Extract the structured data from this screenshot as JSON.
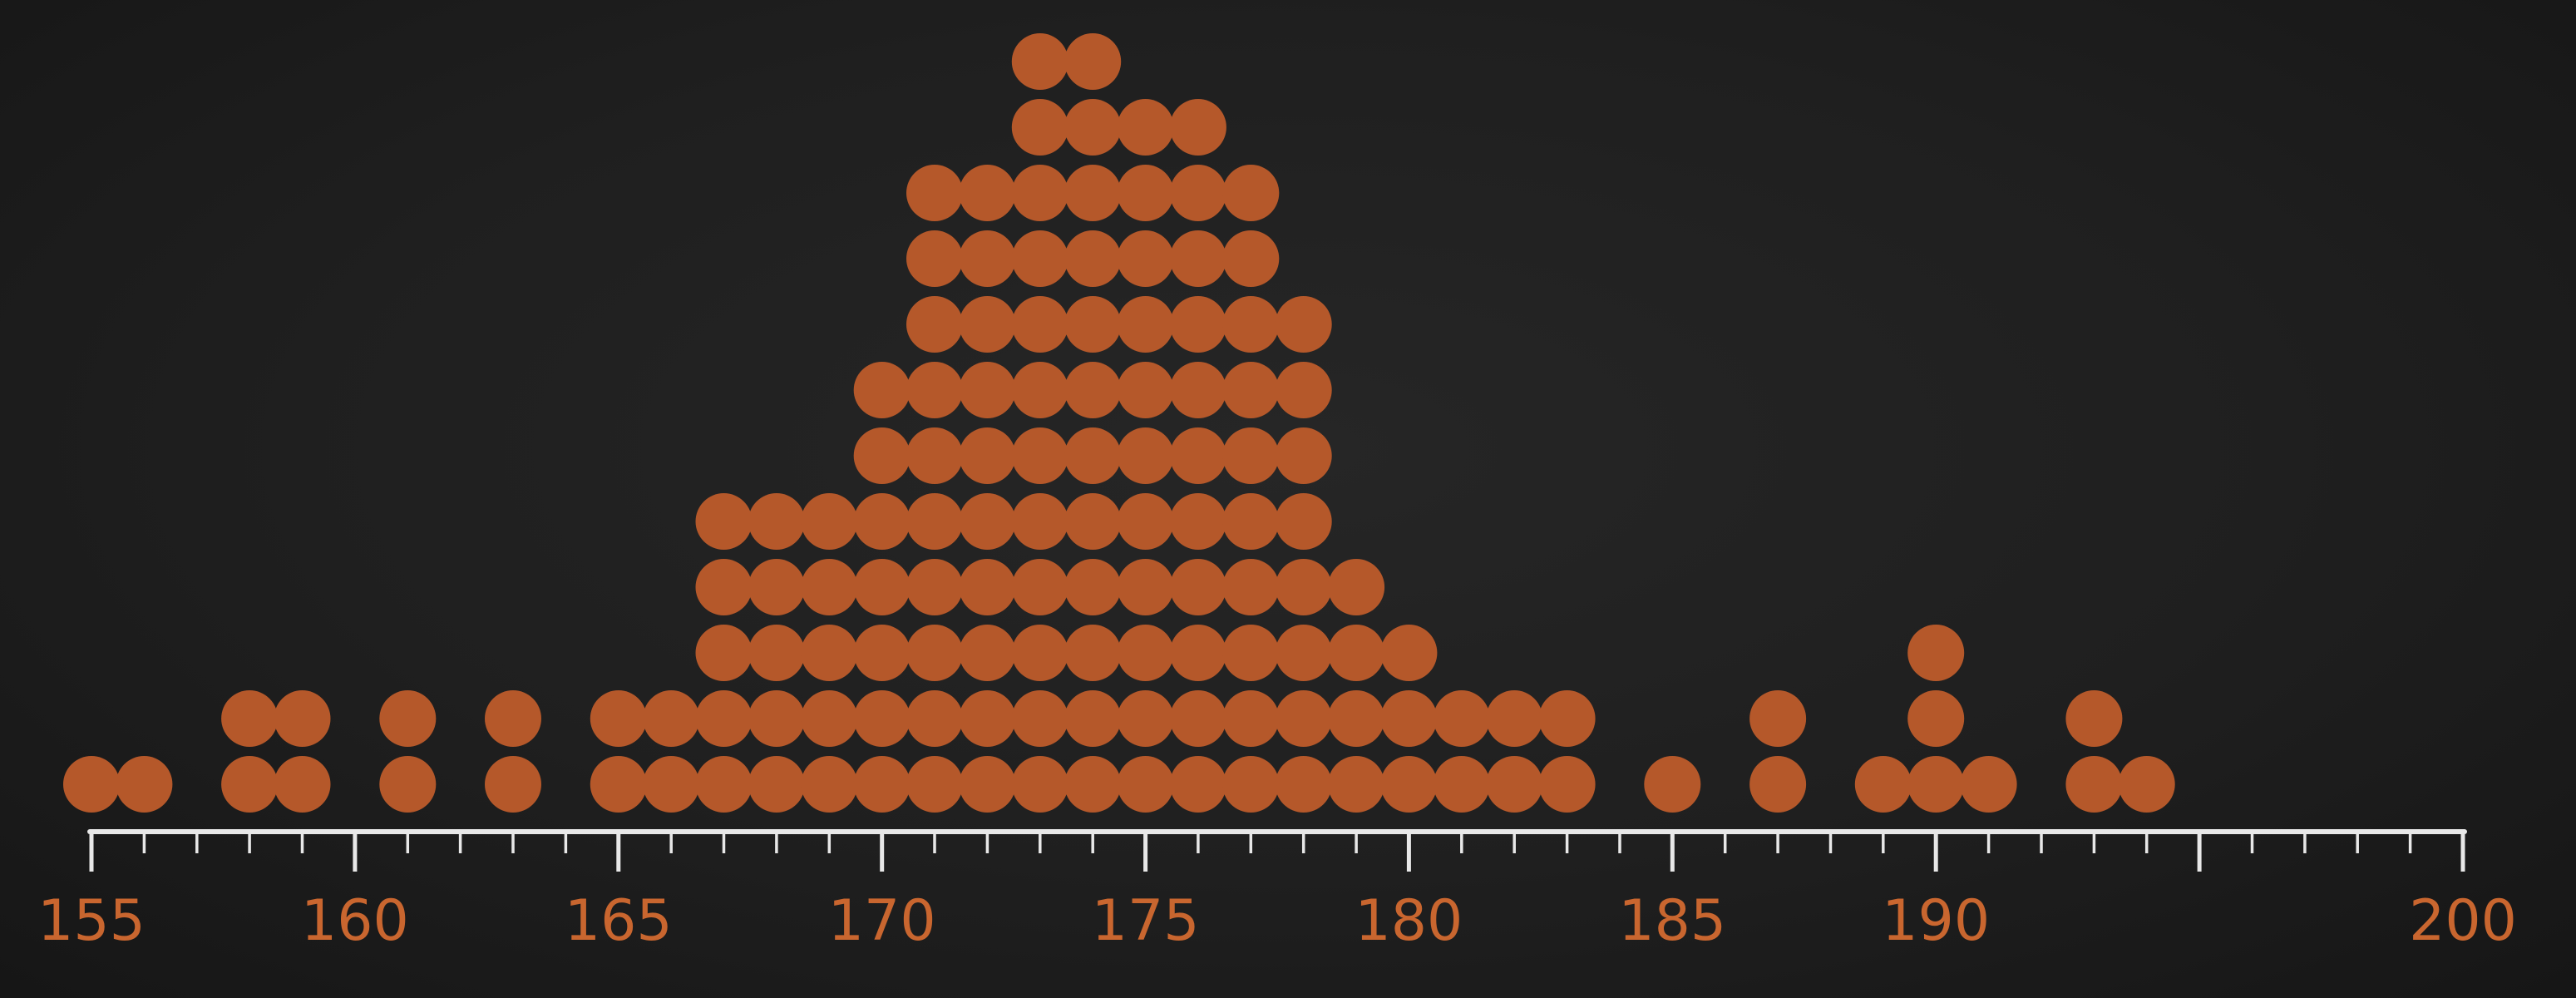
{
  "colors": {
    "background": "#1f1f1f",
    "dot": "#b5582a",
    "axis": "#e8e8e8",
    "tick_label": "#c9662f"
  },
  "chart_data": {
    "type": "scatter",
    "style": "dot plot",
    "title": "",
    "xlabel": "",
    "ylabel": "",
    "xlim": [
      155,
      200
    ],
    "major_ticks": [
      155,
      160,
      165,
      170,
      175,
      180,
      185,
      190,
      195,
      200
    ],
    "major_tick_labels": [
      "155",
      "160",
      "165",
      "170",
      "175",
      "180",
      "185",
      "190",
      "",
      "200"
    ],
    "minor_tick_step": 1,
    "dots": [
      {
        "x": 155,
        "count": 1
      },
      {
        "x": 156,
        "count": 1
      },
      {
        "x": 158,
        "count": 2
      },
      {
        "x": 159,
        "count": 2
      },
      {
        "x": 161,
        "count": 2
      },
      {
        "x": 163,
        "count": 2
      },
      {
        "x": 165,
        "count": 2
      },
      {
        "x": 166,
        "count": 2
      },
      {
        "x": 167,
        "count": 5
      },
      {
        "x": 168,
        "count": 5
      },
      {
        "x": 169,
        "count": 5
      },
      {
        "x": 170,
        "count": 7
      },
      {
        "x": 171,
        "count": 10
      },
      {
        "x": 172,
        "count": 10
      },
      {
        "x": 173,
        "count": 12
      },
      {
        "x": 174,
        "count": 12
      },
      {
        "x": 175,
        "count": 11
      },
      {
        "x": 176,
        "count": 11
      },
      {
        "x": 177,
        "count": 10
      },
      {
        "x": 178,
        "count": 8
      },
      {
        "x": 179,
        "count": 4
      },
      {
        "x": 180,
        "count": 3
      },
      {
        "x": 181,
        "count": 2
      },
      {
        "x": 182,
        "count": 2
      },
      {
        "x": 183,
        "count": 2
      },
      {
        "x": 185,
        "count": 1
      },
      {
        "x": 187,
        "count": 2
      },
      {
        "x": 189,
        "count": 1
      },
      {
        "x": 190,
        "count": 3
      },
      {
        "x": 191,
        "count": 1
      },
      {
        "x": 193,
        "count": 2
      },
      {
        "x": 194,
        "count": 1
      }
    ]
  }
}
